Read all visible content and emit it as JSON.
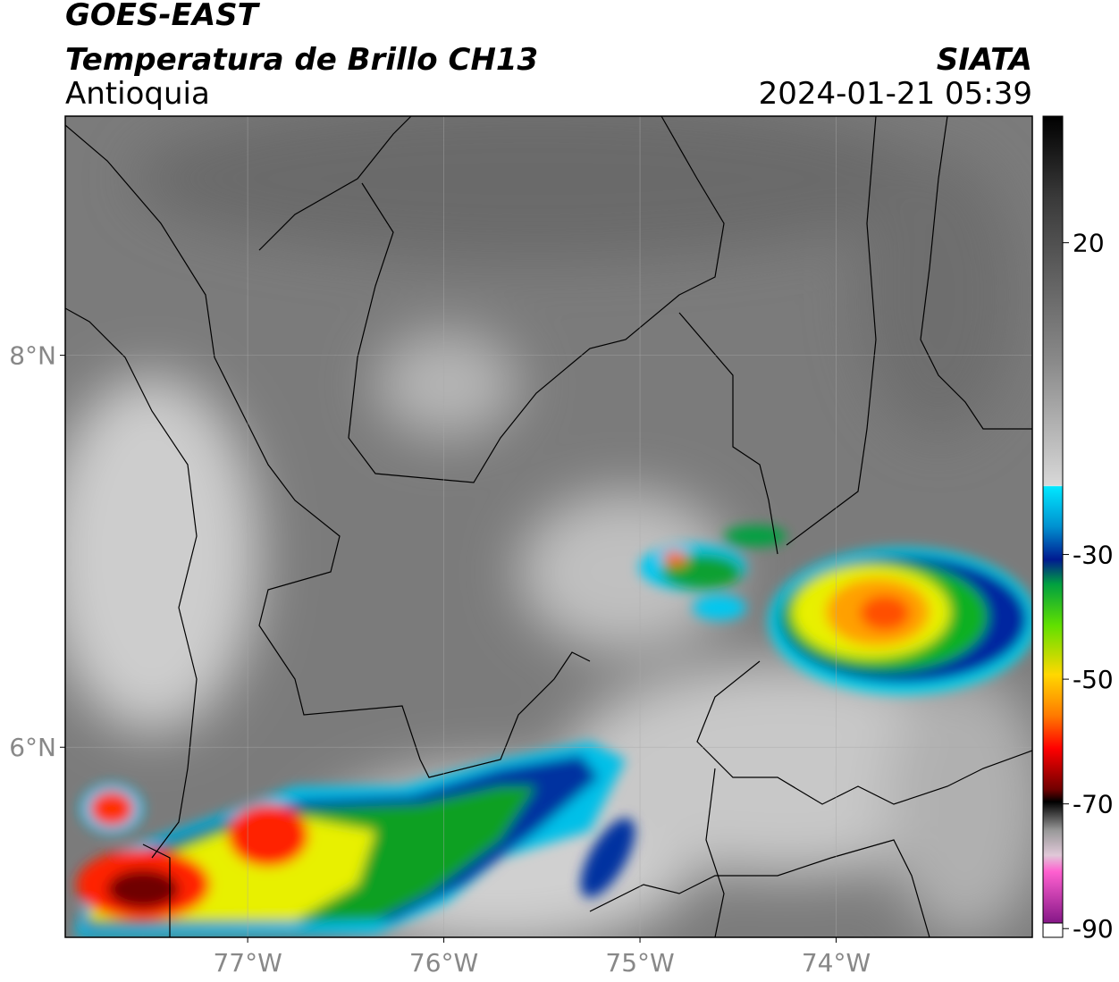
{
  "header": {
    "title": "GOES-EAST",
    "subtitle": "Temperatura de Brillo CH13",
    "region": "Antioquia",
    "source": "SIATA",
    "datetime": "2024-01-21 05:39"
  },
  "map": {
    "xlim": [
      -77.93,
      -73.0
    ],
    "ylim": [
      5.03,
      9.22
    ],
    "xticks": [
      {
        "value": -77,
        "label": "77°W"
      },
      {
        "value": -76,
        "label": "76°W"
      },
      {
        "value": -75,
        "label": "75°W"
      },
      {
        "value": -74,
        "label": "74°W"
      }
    ],
    "yticks": [
      {
        "value": 8,
        "label": "8°N"
      },
      {
        "value": 6,
        "label": "6°N"
      }
    ]
  },
  "colorbar": {
    "lim": [
      -91.4,
      40.3
    ],
    "ticks": [
      20,
      -30,
      -50,
      -70,
      -90
    ]
  }
}
